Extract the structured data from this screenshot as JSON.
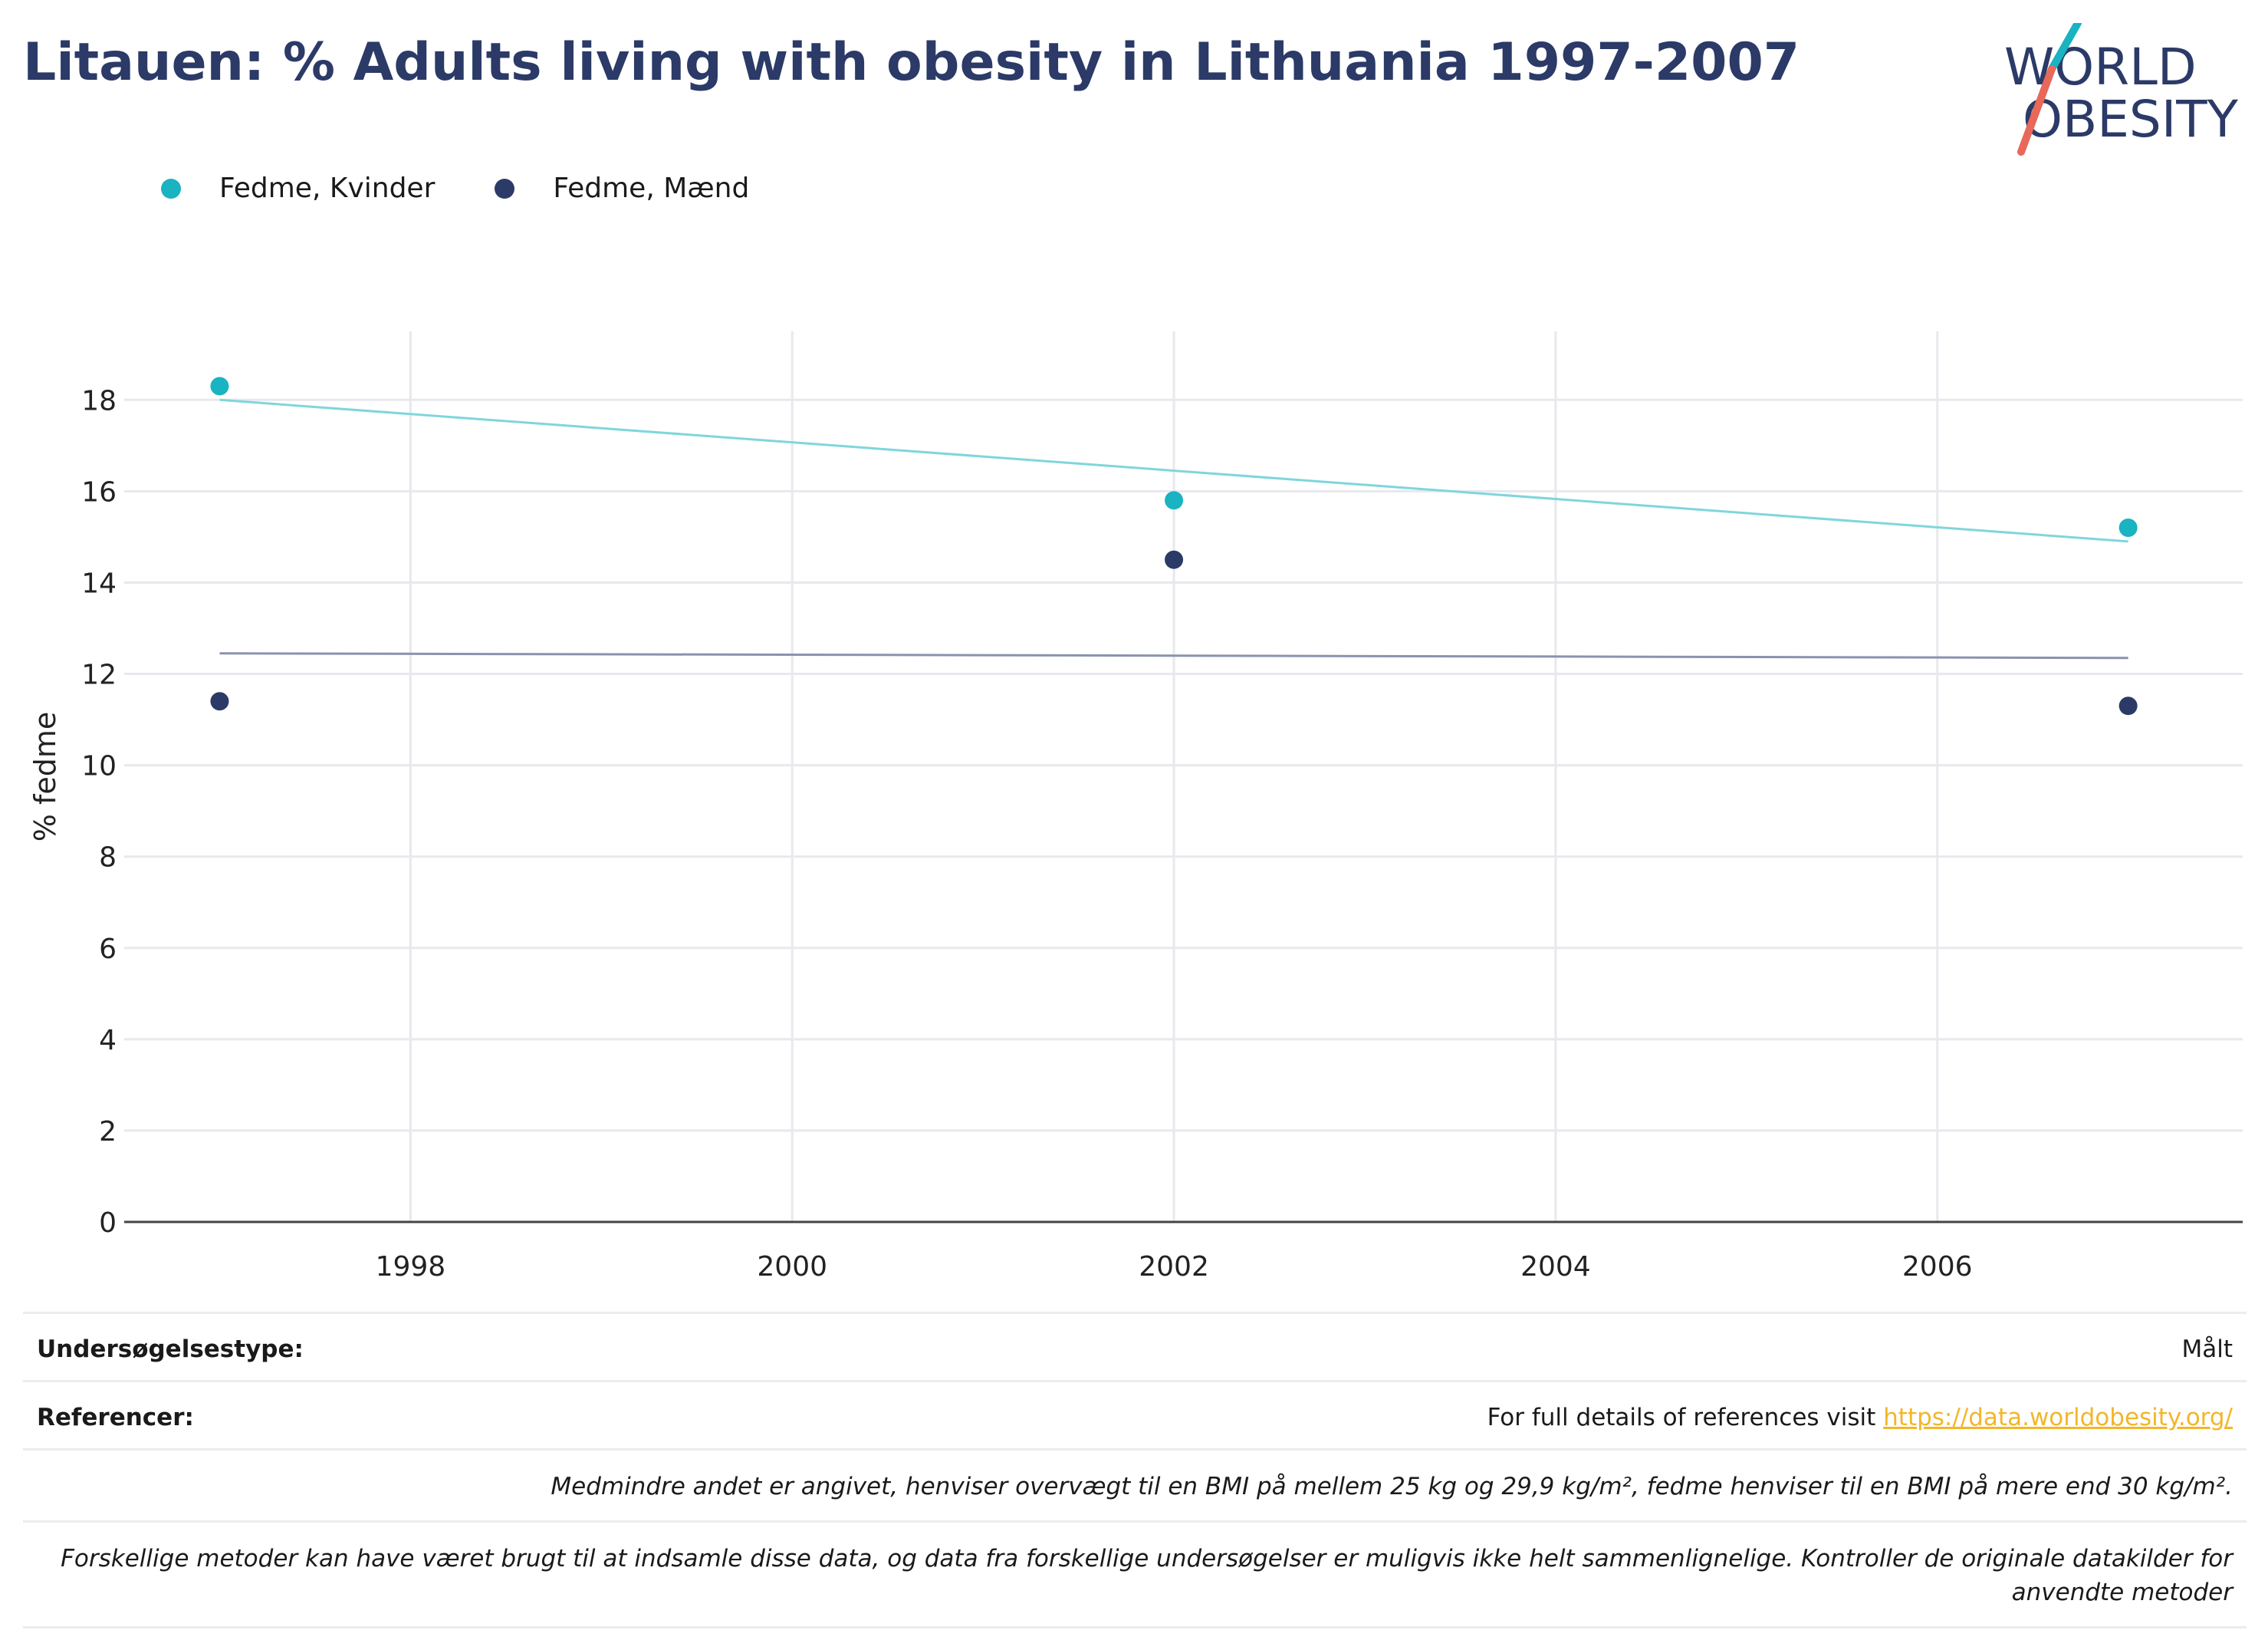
{
  "title": "Litauen: % Adults living with obesity in Lithuania 1997-2007",
  "logo": {
    "line1": "WORLD",
    "line2": "OBESITY"
  },
  "chart_data": {
    "type": "scatter",
    "xlabel": "",
    "ylabel": "% fedme",
    "xlim": [
      1996.5,
      2007.6
    ],
    "ylim": [
      0,
      19.5
    ],
    "x_ticks": [
      1998,
      2000,
      2002,
      2004,
      2006
    ],
    "y_ticks": [
      0,
      2,
      4,
      6,
      8,
      10,
      12,
      14,
      16,
      18
    ],
    "grid": true,
    "legend_position": "top-left",
    "series": [
      {
        "name": "Fedme, Kvinder",
        "color": "#19b3c1",
        "trend_color": "#7fd6dc",
        "x": [
          1997,
          2002,
          2007
        ],
        "y": [
          18.3,
          15.8,
          15.2
        ],
        "trend": {
          "x": [
            1997,
            2007
          ],
          "y": [
            18.0,
            14.9
          ]
        }
      },
      {
        "name": "Fedme, Mænd",
        "color": "#2b3a67",
        "trend_color": "#8a93ad",
        "x": [
          1997,
          2002,
          2007
        ],
        "y": [
          11.4,
          14.5,
          11.3
        ],
        "trend": {
          "x": [
            1997,
            2007
          ],
          "y": [
            12.45,
            12.35
          ]
        }
      }
    ]
  },
  "info": {
    "survey_label": "Undersøgelsestype:",
    "survey_value": "Målt",
    "ref_label": "Referencer:",
    "ref_text": "For full details of references visit ",
    "ref_link": "https://data.worldobesity.org/",
    "note1": "Medmindre andet er angivet, henviser overvægt til en BMI på mellem 25 kg og 29,9 kg/m², fedme henviser til en BMI på mere end 30 kg/m².",
    "note2": "Forskellige metoder kan have været brugt til at indsamle disse data, og data fra forskellige undersøgelser er muligvis ikke helt sammenlignelige. Kontroller de originale datakilder for anvendte metoder"
  },
  "colors": {
    "title": "#2b3a67",
    "accent_teal": "#19b3c1",
    "accent_navy": "#2b3a67",
    "accent_red": "#e8685a",
    "link": "#f2b62a"
  }
}
